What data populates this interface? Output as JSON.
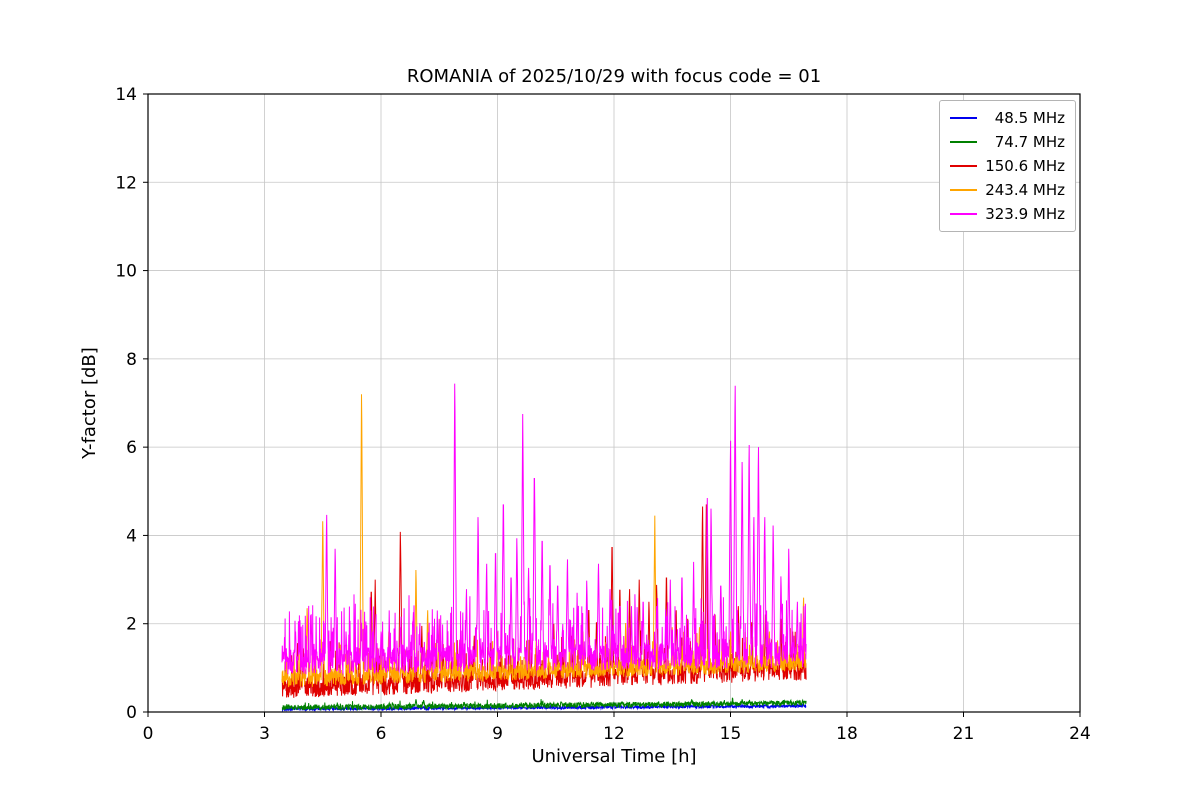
{
  "chart_data": {
    "type": "line",
    "title": "ROMANIA of 2025/10/29 with focus code = 01",
    "xlabel": "Universal Time [h]",
    "ylabel": "Y-factor [dB]",
    "xlim": [
      0,
      24
    ],
    "ylim": [
      0,
      14
    ],
    "xticks": [
      0,
      3,
      6,
      9,
      12,
      15,
      18,
      21,
      24
    ],
    "yticks": [
      0,
      2,
      4,
      6,
      8,
      10,
      12,
      14
    ],
    "grid": true,
    "legend_position": "upper right",
    "x_data_range": [
      3.45,
      16.95
    ],
    "sample_step_h": 0.008,
    "series": [
      {
        "name": "48.5 MHz",
        "color": "#0000ee",
        "base_start": 0.03,
        "base_end": 0.1,
        "noise": 0.07,
        "burst_rate": 0.02,
        "burst_amp": 0.06,
        "spikes": [
          [
            12.0,
            0.2
          ],
          [
            14.6,
            0.2
          ]
        ]
      },
      {
        "name": "74.7 MHz",
        "color": "#008000",
        "base_start": 0.04,
        "base_end": 0.14,
        "noise": 0.12,
        "burst_rate": 0.05,
        "burst_amp": 0.12,
        "spikes": [
          [
            6.9,
            0.3
          ],
          [
            7.1,
            0.28
          ],
          [
            14.0,
            0.3
          ],
          [
            15.3,
            0.3
          ]
        ]
      },
      {
        "name": "150.6 MHz",
        "color": "#e00000",
        "base_start": 0.3,
        "base_end": 0.72,
        "noise": 0.45,
        "burst_rate": 0.15,
        "burst_amp": 0.9,
        "spikes": [
          [
            4.0,
            1.5
          ],
          [
            5.75,
            2.95
          ],
          [
            5.85,
            3.0
          ],
          [
            6.5,
            4.25
          ],
          [
            7.05,
            1.95
          ],
          [
            7.6,
            1.6
          ],
          [
            8.4,
            1.8
          ],
          [
            9.3,
            1.7
          ],
          [
            10.45,
            2.0
          ],
          [
            10.9,
            1.8
          ],
          [
            11.35,
            2.5
          ],
          [
            11.55,
            2.2
          ],
          [
            11.95,
            4.05
          ],
          [
            12.15,
            3.0
          ],
          [
            12.4,
            2.9
          ],
          [
            12.65,
            3.0
          ],
          [
            12.9,
            2.6
          ],
          [
            13.1,
            3.0
          ],
          [
            13.35,
            3.3
          ],
          [
            13.6,
            2.4
          ],
          [
            13.9,
            2.2
          ],
          [
            14.28,
            4.85
          ],
          [
            14.38,
            4.9
          ],
          [
            14.6,
            2.3
          ],
          [
            15.2,
            2.5
          ],
          [
            15.55,
            2.2
          ],
          [
            15.9,
            2.3
          ],
          [
            16.3,
            2.2
          ],
          [
            16.6,
            1.9
          ]
        ]
      },
      {
        "name": "243.4 MHz",
        "color": "#ffa500",
        "base_start": 0.55,
        "base_end": 0.92,
        "noise": 0.4,
        "burst_rate": 0.1,
        "burst_amp": 0.6,
        "spikes": [
          [
            4.1,
            2.45
          ],
          [
            4.5,
            4.5
          ],
          [
            5.5,
            7.5
          ],
          [
            6.2,
            1.9
          ],
          [
            6.9,
            3.35
          ],
          [
            7.2,
            2.4
          ],
          [
            7.5,
            2.2
          ],
          [
            8.1,
            1.8
          ],
          [
            9.0,
            1.9
          ],
          [
            10.0,
            1.8
          ],
          [
            11.2,
            1.9
          ],
          [
            12.3,
            2.1
          ],
          [
            13.05,
            4.45
          ],
          [
            13.5,
            2.0
          ],
          [
            14.2,
            2.0
          ],
          [
            15.0,
            1.9
          ],
          [
            16.0,
            1.9
          ],
          [
            16.88,
            2.7
          ]
        ]
      },
      {
        "name": "323.9 MHz",
        "color": "#ff00ff",
        "base_start": 0.85,
        "base_end": 1.0,
        "noise": 0.6,
        "burst_rate": 0.25,
        "burst_amp": 1.2,
        "spikes": [
          [
            3.8,
            1.9
          ],
          [
            4.2,
            2.0
          ],
          [
            4.6,
            4.65
          ],
          [
            4.82,
            3.85
          ],
          [
            5.1,
            1.9
          ],
          [
            5.5,
            2.0
          ],
          [
            6.0,
            1.9
          ],
          [
            6.5,
            2.0
          ],
          [
            7.0,
            2.1
          ],
          [
            7.45,
            2.3
          ],
          [
            7.9,
            7.75
          ],
          [
            8.2,
            2.9
          ],
          [
            8.5,
            4.6
          ],
          [
            8.72,
            3.5
          ],
          [
            8.95,
            3.9
          ],
          [
            9.15,
            5.1
          ],
          [
            9.35,
            3.3
          ],
          [
            9.5,
            4.1
          ],
          [
            9.65,
            6.75
          ],
          [
            9.8,
            3.4
          ],
          [
            9.95,
            5.75
          ],
          [
            10.15,
            4.2
          ],
          [
            10.35,
            3.6
          ],
          [
            10.55,
            3.1
          ],
          [
            10.8,
            3.6
          ],
          [
            11.05,
            2.7
          ],
          [
            11.3,
            3.1
          ],
          [
            11.6,
            3.5
          ],
          [
            11.9,
            2.9
          ],
          [
            12.15,
            2.6
          ],
          [
            12.45,
            2.4
          ],
          [
            12.75,
            2.7
          ],
          [
            13.1,
            2.5
          ],
          [
            13.45,
            3.0
          ],
          [
            13.75,
            3.3
          ],
          [
            14.05,
            3.4
          ],
          [
            14.4,
            5.05
          ],
          [
            14.5,
            4.8
          ],
          [
            14.75,
            3.1
          ],
          [
            15.0,
            6.4
          ],
          [
            15.12,
            7.7
          ],
          [
            15.3,
            5.9
          ],
          [
            15.48,
            6.3
          ],
          [
            15.6,
            4.6
          ],
          [
            15.72,
            6.25
          ],
          [
            15.88,
            4.6
          ],
          [
            16.1,
            4.4
          ],
          [
            16.3,
            3.2
          ],
          [
            16.5,
            3.85
          ],
          [
            16.72,
            2.6
          ],
          [
            16.9,
            2.1
          ]
        ]
      }
    ]
  }
}
